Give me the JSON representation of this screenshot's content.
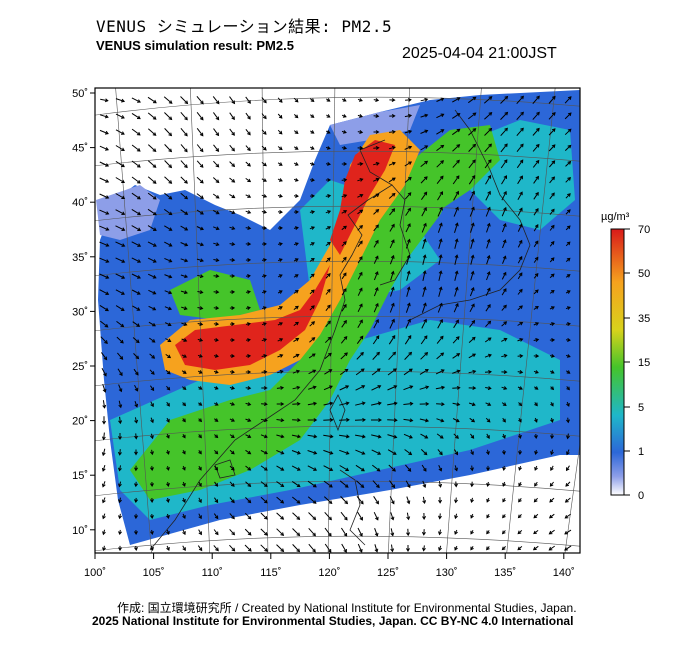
{
  "title_ja": "VENUS シミュレーション結果: PM2.5",
  "title_en": "VENUS simulation result: PM2.5",
  "timestamp": "2025-04-04 21:00JST",
  "map": {
    "lat_labels": [
      "50˚",
      "45˚",
      "40˚",
      "35˚",
      "30˚",
      "25˚",
      "20˚",
      "15˚",
      "10˚"
    ],
    "lon_labels": [
      "100˚",
      "105˚",
      "110˚",
      "115˚",
      "120˚",
      "125˚",
      "130˚",
      "135˚",
      "140˚"
    ],
    "colors": {
      "very_high": "#e0241c",
      "high": "#f6a21e",
      "moderate": "#45c42a",
      "low": "#1fb7c9",
      "very_low": "#2c67d8",
      "trace": "#8d9ee8"
    }
  },
  "colorbar": {
    "unit": "µg/m³",
    "labels": [
      "70",
      "50",
      "35",
      "15",
      "5",
      "1",
      "0"
    ],
    "colors": [
      "#e0241c",
      "#f6a21e",
      "#d8d21c",
      "#45c42a",
      "#1fb7c9",
      "#2c67d8",
      "#8d9ee8",
      "#ffffff"
    ]
  },
  "credits": {
    "line1": "作成: 国立環境研究所 / Created by National Institute for Environmental Studies, Japan.",
    "line2": "2025 National Institute for Environmental Studies, Japan. CC BY-NC 4.0 International"
  }
}
